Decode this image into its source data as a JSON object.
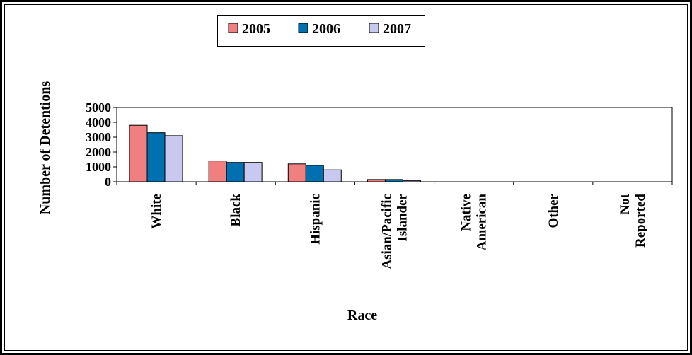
{
  "chart_data": {
    "type": "bar",
    "title": "",
    "xlabel": "Race",
    "ylabel": "Number of Detentions",
    "ylim": [
      0,
      5000
    ],
    "yticks": [
      "0",
      "1000",
      "2000",
      "3000",
      "4000",
      "5000"
    ],
    "categories": [
      [
        "White"
      ],
      [
        "Black"
      ],
      [
        "Hispanic"
      ],
      [
        "Asian/Pacific",
        "Islander"
      ],
      [
        "Native",
        "American"
      ],
      [
        "Other"
      ],
      [
        "Not",
        "Reported"
      ]
    ],
    "series": [
      {
        "name": "2005",
        "color": "#f08080",
        "values": [
          3800,
          1400,
          1200,
          150,
          0,
          0,
          0
        ]
      },
      {
        "name": "2006",
        "color": "#0070b0",
        "values": [
          3300,
          1300,
          1100,
          150,
          0,
          0,
          0
        ]
      },
      {
        "name": "2007",
        "color": "#c8c8f0",
        "values": [
          3100,
          1300,
          800,
          80,
          0,
          0,
          0
        ]
      }
    ],
    "legend": {
      "position": "top-center",
      "entries": [
        "2005",
        "2006",
        "2007"
      ]
    },
    "grid": false
  }
}
